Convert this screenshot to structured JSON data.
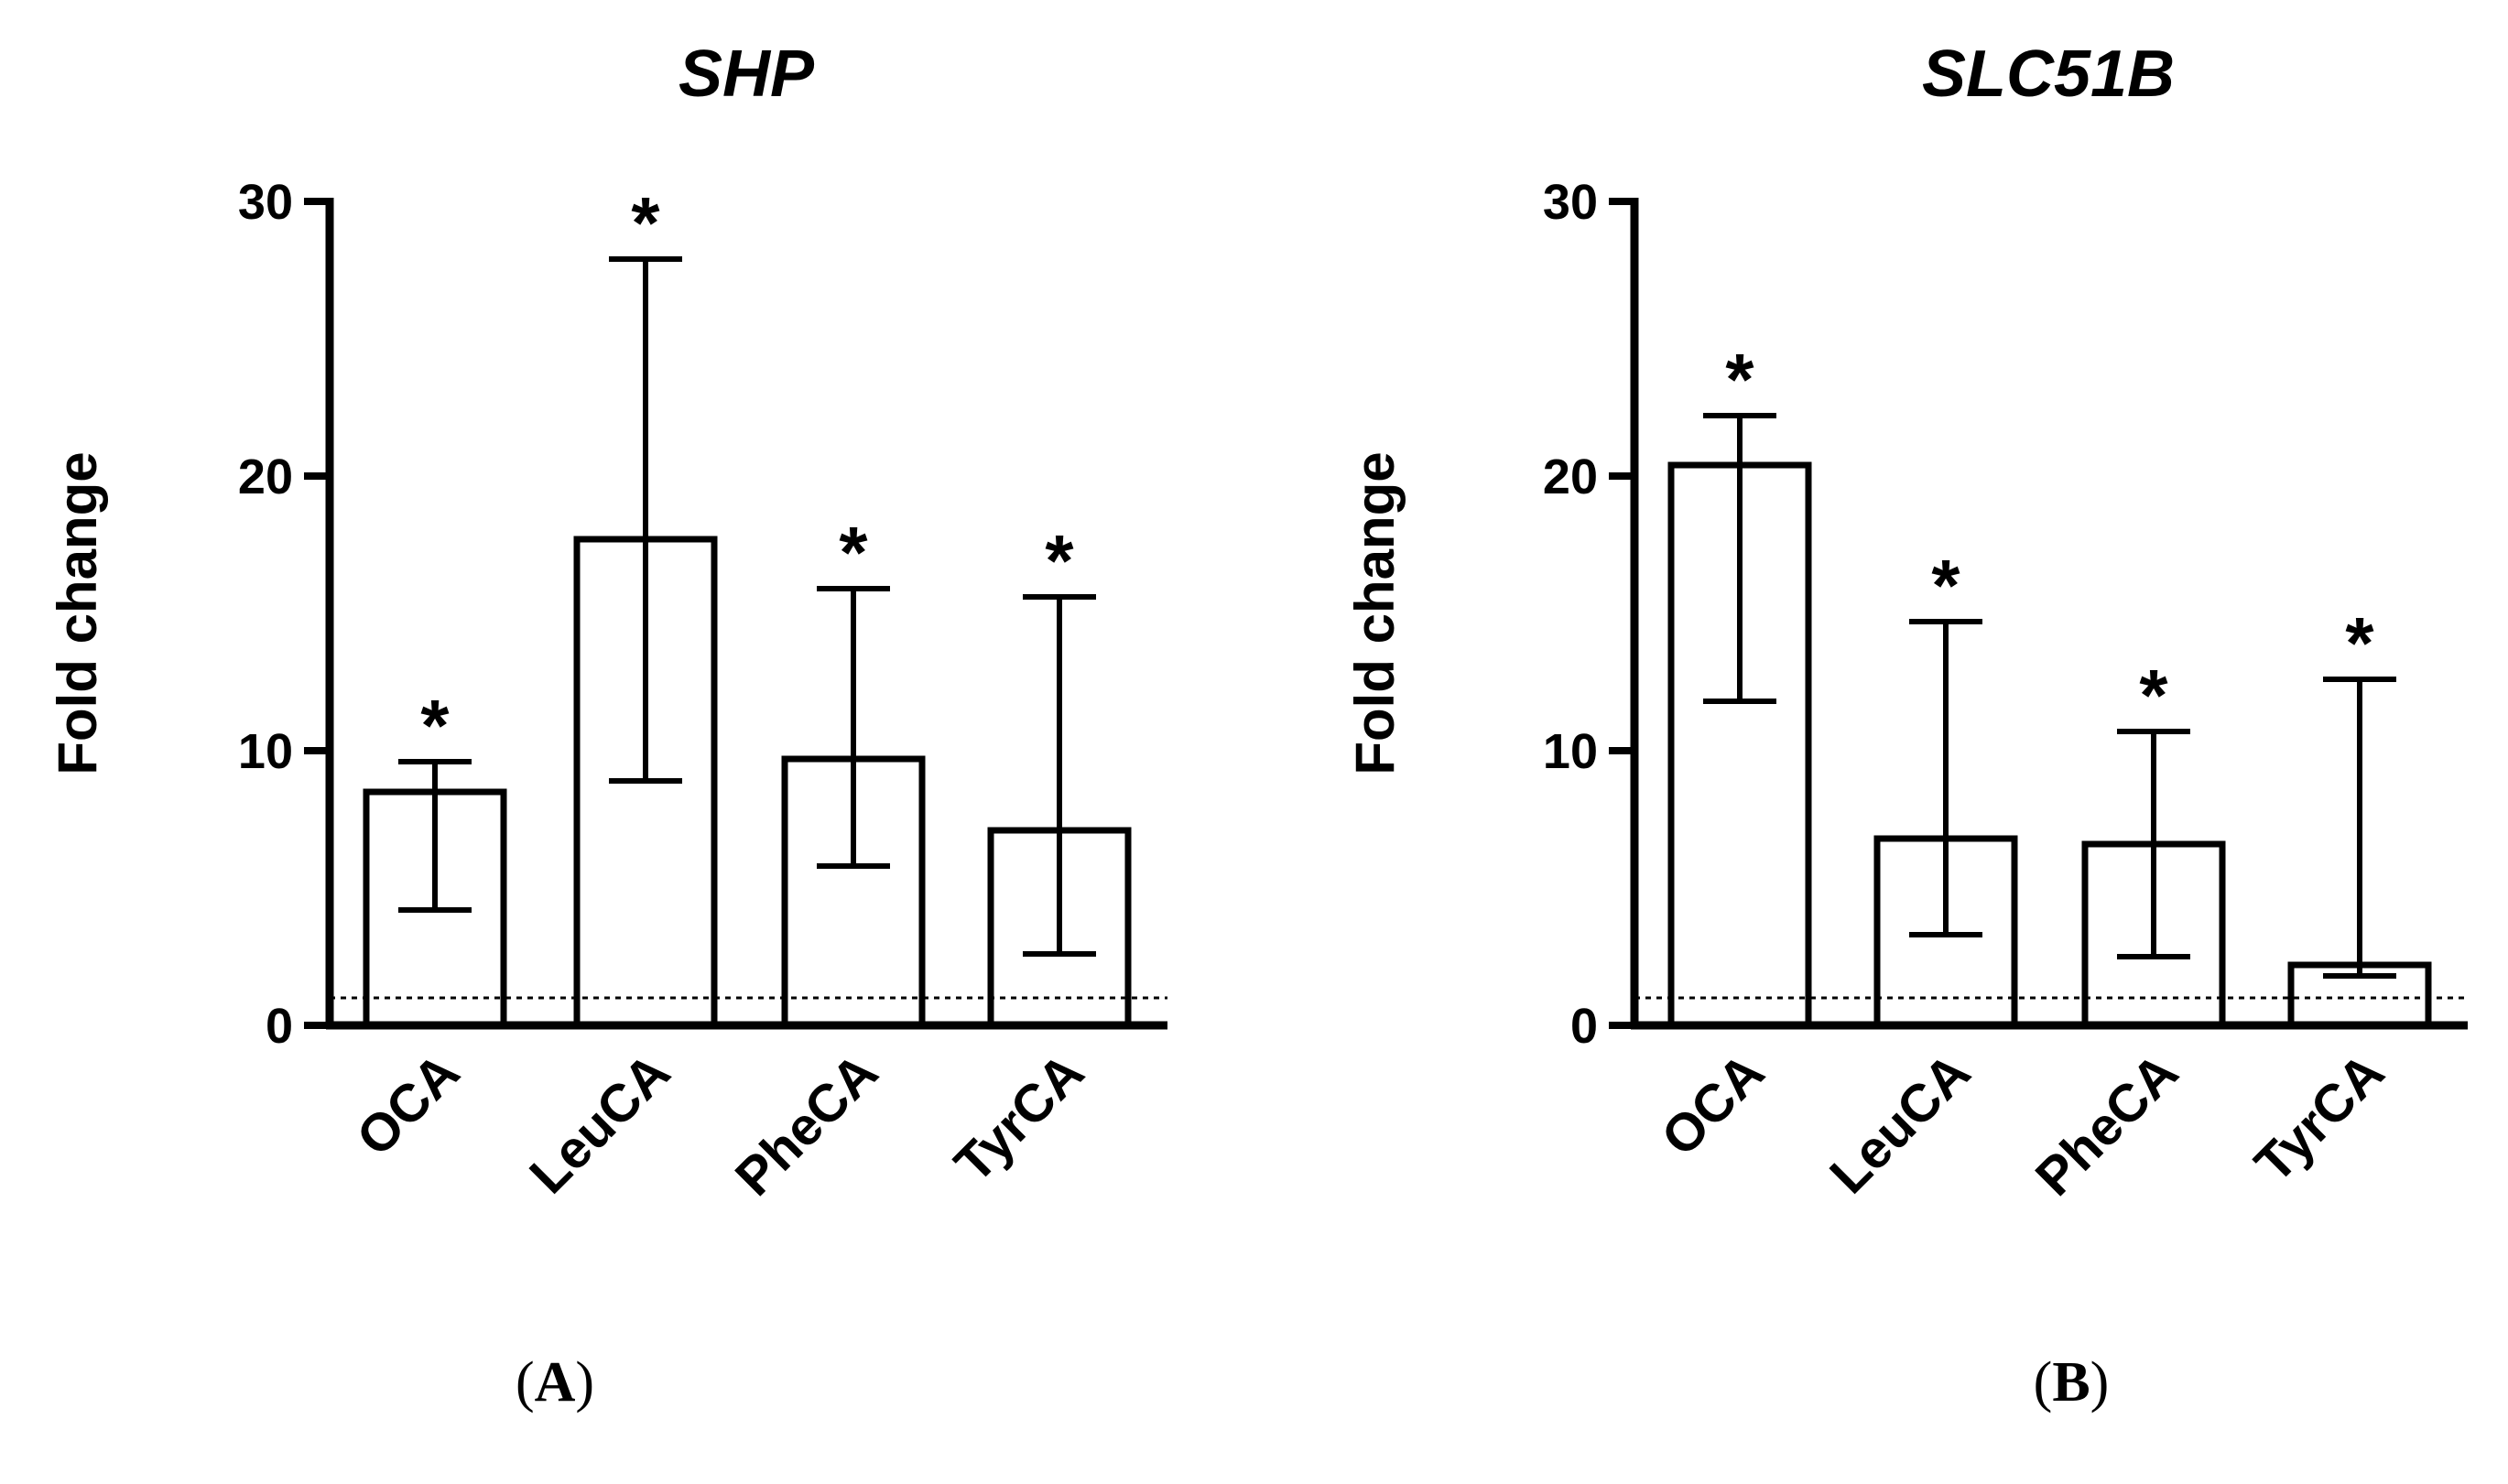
{
  "chart_data": [
    {
      "type": "bar",
      "title": "SHP",
      "ylabel": "Fold change",
      "xlabel": "",
      "ylim": [
        0,
        30
      ],
      "yticks": [
        0,
        10,
        20,
        30
      ],
      "categories": [
        "OCA",
        "LeuCA",
        "PheCA",
        "TyrCA"
      ],
      "values": [
        8.5,
        17.7,
        9.7,
        7.1
      ],
      "error_low": [
        4.2,
        8.9,
        5.8,
        2.6
      ],
      "error_high": [
        9.6,
        27.9,
        15.9,
        15.6
      ],
      "significance": [
        "*",
        "*",
        "*",
        "*"
      ],
      "reference_line": 1,
      "panel_label": {
        "open": "(",
        "letter": "A",
        "close": ")"
      }
    },
    {
      "type": "bar",
      "title": "SLC51B",
      "ylabel": "Fold change",
      "xlabel": "",
      "ylim": [
        0,
        30
      ],
      "yticks": [
        0,
        10,
        20,
        30
      ],
      "categories": [
        "OCA",
        "LeuCA",
        "PheCA",
        "TyrCA"
      ],
      "values": [
        20.4,
        6.8,
        6.6,
        2.2
      ],
      "error_low": [
        11.8,
        3.3,
        2.5,
        1.8
      ],
      "error_high": [
        22.2,
        14.7,
        10.7,
        12.6
      ],
      "significance": [
        "*",
        "*",
        "*",
        "*"
      ],
      "reference_line": 1,
      "panel_label": {
        "open": "(",
        "letter": "B",
        "close": ")"
      }
    }
  ]
}
